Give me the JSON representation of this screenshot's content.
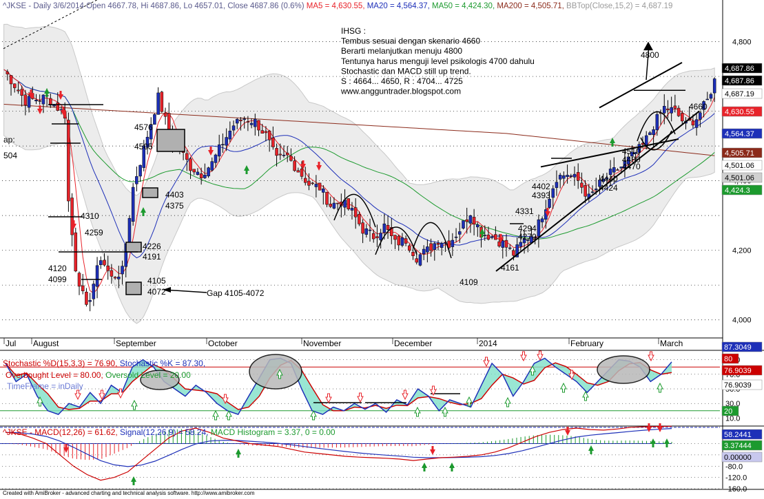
{
  "chart_data": [
    {
      "type": "candlestick",
      "panel": "price",
      "header": {
        "symbol": "^JKSE - Daily 3/6/2014",
        "open": "Open 4667.78,",
        "high": "Hi 4687.86,",
        "low": "Lo 4657.01,",
        "close": "Close 4687.86 (0.6%)",
        "ma5": "MA5 = 4,630.55,",
        "ma20": "MA20 = 4,564.37,",
        "ma50": "MA50 = 4,424.30,",
        "ma200": "MA200 = 4,505.71,",
        "bbtop": "BBTop(Close,15,2) = 4,687.19"
      },
      "ylim": [
        3950,
        4900
      ],
      "y_ticks": [
        "4,800",
        "4,600",
        "4,400",
        "4,200",
        "4,000"
      ],
      "x_ticks": [
        "Jul",
        "August",
        "September",
        "October",
        "November",
        "December",
        "2014",
        "February",
        "March"
      ],
      "price_tags": [
        {
          "label": "4,687.86",
          "color": "#000000",
          "text_color": "#ffffff",
          "value": 4687.86
        },
        {
          "label": "4,687.86",
          "color": "#000000",
          "text_color": "#ffffff",
          "value": 4687.86
        },
        {
          "label": "4,687.19",
          "color": "#ffffff",
          "text_color": "#000000",
          "value": 4687.19
        },
        {
          "label": "4,630.55",
          "color": "#e8232a",
          "text_color": "#ffffff",
          "value": 4630.55
        },
        {
          "label": "4,564.37",
          "color": "#1d2fb8",
          "text_color": "#ffffff",
          "value": 4564.37
        },
        {
          "label": "4,505.71",
          "color": "#8b2a1a",
          "text_color": "#ffffff",
          "value": 4505.71
        },
        {
          "label": "4,501.06",
          "color": "#ffffff",
          "text_color": "#000000",
          "value": 4501.06
        },
        {
          "label": "4,501.06",
          "color": "#d0d0d0",
          "text_color": "#000000",
          "value": 4501.06
        },
        {
          "label": "4,424.3",
          "color": "#1c9a2e",
          "text_color": "#ffffff",
          "value": 4424.3
        }
      ],
      "annotations": {
        "commentary": [
          "IHSG :",
          "Tembus sesuai dengan skenario 4660",
          "Berarti melanjutkan menuju 4800",
          "Tentunya harus menguji level psikologis 4700 dahulu",
          "Stochastic dan MACD still up trend.",
          "S : 4664... 4650, R : 4704... 4725",
          "www.angguntrader.blogspot.com"
        ],
        "levels": [
          {
            "text": "4800"
          },
          {
            "text": "4660"
          },
          {
            "text": "4576"
          },
          {
            "text": "4505"
          },
          {
            "text": "4403"
          },
          {
            "text": "4375"
          },
          {
            "text": "4310"
          },
          {
            "text": "4259"
          },
          {
            "text": "4226"
          },
          {
            "text": "4191"
          },
          {
            "text": "4120"
          },
          {
            "text": "4099"
          },
          {
            "text": "4105"
          },
          {
            "text": "4072"
          },
          {
            "text": "Gap 4105-4072"
          },
          {
            "text": "4109"
          },
          {
            "text": "4161"
          },
          {
            "text": "4331"
          },
          {
            "text": "4294"
          },
          {
            "text": "4270"
          },
          {
            "text": "4402"
          },
          {
            "text": "4393"
          },
          {
            "text": "4440"
          },
          {
            "text": "4424"
          },
          {
            "text": "4510"
          },
          {
            "text": "4480"
          },
          {
            "text": "4470"
          },
          {
            "text": "ap:"
          },
          {
            "text": "504"
          }
        ]
      },
      "series": [
        {
          "name": "MA5",
          "color": "#e8232a"
        },
        {
          "name": "MA20",
          "color": "#1d2fb8"
        },
        {
          "name": "MA50",
          "color": "#1c9a2e"
        },
        {
          "name": "MA200",
          "color": "#8b2a1a"
        },
        {
          "name": "BBTop(Close,15,2)",
          "color": "#c8c8c8"
        }
      ],
      "close_path": [
        [
          0,
          4720
        ],
        [
          6,
          4630
        ],
        [
          12,
          4640
        ],
        [
          17,
          4590
        ],
        [
          18,
          4340
        ],
        [
          20,
          4150
        ],
        [
          23,
          4030
        ],
        [
          27,
          4180
        ],
        [
          30,
          4120
        ],
        [
          33,
          4140
        ],
        [
          36,
          4380
        ],
        [
          40,
          4530
        ],
        [
          43,
          4640
        ],
        [
          46,
          4540
        ],
        [
          49,
          4490
        ],
        [
          52,
          4440
        ],
        [
          55,
          4420
        ],
        [
          58,
          4450
        ],
        [
          61,
          4510
        ],
        [
          64,
          4560
        ],
        [
          67,
          4580
        ],
        [
          70,
          4570
        ],
        [
          73,
          4530
        ],
        [
          76,
          4460
        ],
        [
          79,
          4470
        ],
        [
          82,
          4430
        ],
        [
          85,
          4390
        ],
        [
          88,
          4380
        ],
        [
          91,
          4330
        ],
        [
          94,
          4340
        ],
        [
          97,
          4310
        ],
        [
          100,
          4260
        ],
        [
          103,
          4240
        ],
        [
          106,
          4270
        ],
        [
          109,
          4220
        ],
        [
          112,
          4230
        ],
        [
          115,
          4180
        ],
        [
          118,
          4200
        ],
        [
          121,
          4230
        ],
        [
          124,
          4220
        ],
        [
          127,
          4260
        ],
        [
          130,
          4310
        ],
        [
          133,
          4250
        ],
        [
          136,
          4240
        ],
        [
          139,
          4220
        ],
        [
          142,
          4190
        ],
        [
          145,
          4230
        ],
        [
          148,
          4250
        ],
        [
          151,
          4330
        ],
        [
          154,
          4410
        ],
        [
          157,
          4420
        ],
        [
          160,
          4400
        ],
        [
          163,
          4350
        ],
        [
          166,
          4390
        ],
        [
          169,
          4420
        ],
        [
          172,
          4440
        ],
        [
          175,
          4470
        ],
        [
          178,
          4500
        ],
        [
          181,
          4560
        ],
        [
          184,
          4610
        ],
        [
          187,
          4600
        ],
        [
          190,
          4560
        ],
        [
          193,
          4580
        ],
        [
          196,
          4630
        ],
        [
          198,
          4688
        ]
      ]
    },
    {
      "type": "line",
      "panel": "stochastic",
      "header": {
        "title": "Stochastic %D(15,3,3) = 76.90,",
        "k": "Stochastic %K = 87.30,",
        "overbought": "Overbought Level = 80.00,",
        "oversold": "Oversold Level = 20.00",
        "timeframe": "TimeFrame = inDaily"
      },
      "ylim": [
        0,
        100
      ],
      "y_ticks": [
        "90.0",
        "70.0",
        "50.0",
        "30.0",
        "10.0"
      ],
      "tags": [
        {
          "label": "87.3049",
          "color": "#1d2fb8",
          "value": 87.3
        },
        {
          "label": "80",
          "color": "#cc0000",
          "value": 80
        },
        {
          "label": "76.9039",
          "color": "#cc0000",
          "value": 76.9
        },
        {
          "label": "76.9039",
          "color": "#ffffff",
          "value": 76.9
        },
        {
          "label": "20",
          "color": "#1c9a2e",
          "value": 20
        }
      ],
      "series": [
        {
          "name": "Stochastic %D",
          "color": "#cc0000"
        },
        {
          "name": "Stochastic %K",
          "color": "#1d2fb8"
        }
      ],
      "k_values": [
        85,
        60,
        70,
        40,
        20,
        15,
        30,
        25,
        45,
        30,
        55,
        45,
        80,
        90,
        80,
        60,
        50,
        40,
        55,
        45,
        30,
        20,
        15,
        40,
        65,
        90,
        92,
        85,
        50,
        20,
        15,
        25,
        20,
        30,
        22,
        30,
        18,
        35,
        28,
        50,
        40,
        20,
        35,
        30,
        25,
        55,
        85,
        70,
        40,
        60,
        85,
        92,
        80,
        70,
        60,
        45,
        60,
        75,
        90,
        88,
        80,
        60,
        70,
        87
      ]
    },
    {
      "type": "bar",
      "panel": "macd",
      "header": {
        "title": "^JKSE - MACD(12,26) = 61.62,",
        "signal": "Signal(12,26,9) = 58.24,",
        "hist": "MACD Histogram = 3.37, 0 = 0.00"
      },
      "ylim": [
        -160,
        60
      ],
      "y_ticks": [
        "0.0",
        "-40.0",
        "-80.0",
        "-120.0",
        "-160.0"
      ],
      "tags": [
        {
          "label": "58.2441",
          "color": "#1d2fb8",
          "value": 58.24
        },
        {
          "label": "3.37444",
          "color": "#1c9a2e",
          "value": 3.37
        },
        {
          "label": "0.00000",
          "color": "#c8c8ee",
          "value": 0
        }
      ],
      "series": [
        {
          "name": "MACD",
          "color": "#cc0000"
        },
        {
          "name": "Signal",
          "color": "#1d2fb8"
        },
        {
          "name": "MACD Histogram",
          "color": "#1c9a2e"
        }
      ],
      "macd_values": [
        40,
        35,
        20,
        0,
        -40,
        -80,
        -110,
        -130,
        -120,
        -100,
        -60,
        -20,
        20,
        45,
        55,
        40,
        20,
        10,
        0,
        -5,
        -10,
        -20,
        -30,
        -35,
        -40,
        -45,
        -48,
        -50,
        -52,
        -55,
        -60,
        -55,
        -50,
        -48,
        -45,
        -40,
        -30,
        -15,
        5,
        25,
        40,
        50,
        55,
        50,
        48,
        52,
        58,
        60,
        61,
        61.6
      ]
    }
  ],
  "footer": {
    "credit": "Created with AmiBroker - advanced charting and technical analysis software. http://www.amibroker.com"
  }
}
